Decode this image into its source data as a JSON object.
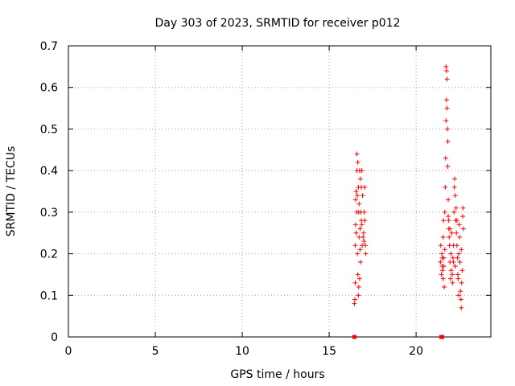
{
  "chart_data": {
    "type": "scatter",
    "title": "Day 303 of 2023, SRMTID for receiver p012",
    "xlabel": "GPS time / hours",
    "ylabel": "SRMTID / TECUs",
    "xlim": [
      0,
      24.3
    ],
    "ylim": [
      0,
      0.7
    ],
    "xticks": [
      0,
      5,
      10,
      15,
      20
    ],
    "yticks": [
      0,
      0.1,
      0.2,
      0.3,
      0.4,
      0.5,
      0.6,
      0.7
    ],
    "grid": true,
    "marker": "plus",
    "color": "#ff0000",
    "zero_points": [
      [
        16.45,
        0
      ],
      [
        21.45,
        0
      ],
      [
        21.5,
        0
      ]
    ],
    "series": [
      {
        "points": [
          [
            16.45,
            0.08
          ],
          [
            16.48,
            0.09
          ],
          [
            16.5,
            0.13
          ],
          [
            16.5,
            0.22
          ],
          [
            16.52,
            0.27
          ],
          [
            16.52,
            0.33
          ],
          [
            16.55,
            0.35
          ],
          [
            16.55,
            0.25
          ],
          [
            16.58,
            0.3
          ],
          [
            16.6,
            0.44
          ],
          [
            16.6,
            0.4
          ],
          [
            16.62,
            0.34
          ],
          [
            16.62,
            0.2
          ],
          [
            16.65,
            0.15
          ],
          [
            16.65,
            0.42
          ],
          [
            16.68,
            0.36
          ],
          [
            16.68,
            0.1
          ],
          [
            16.7,
            0.12
          ],
          [
            16.7,
            0.3
          ],
          [
            16.72,
            0.32
          ],
          [
            16.75,
            0.4
          ],
          [
            16.75,
            0.14
          ],
          [
            16.78,
            0.26
          ],
          [
            16.8,
            0.38
          ],
          [
            16.8,
            0.18
          ],
          [
            16.82,
            0.3
          ],
          [
            16.85,
            0.28
          ],
          [
            16.85,
            0.36
          ],
          [
            16.88,
            0.27
          ],
          [
            16.9,
            0.22
          ],
          [
            16.92,
            0.34
          ],
          [
            16.95,
            0.24
          ],
          [
            16.98,
            0.25
          ],
          [
            17.0,
            0.23
          ],
          [
            17.02,
            0.3
          ],
          [
            17.05,
            0.28
          ],
          [
            17.05,
            0.36
          ],
          [
            17.08,
            0.22
          ],
          [
            17.1,
            0.2
          ],
          [
            16.72,
            0.24
          ],
          [
            16.78,
            0.21
          ],
          [
            16.88,
            0.4
          ]
        ]
      },
      {
        "points": [
          [
            21.4,
            0.18
          ],
          [
            21.42,
            0.22
          ],
          [
            21.45,
            0.15
          ],
          [
            21.48,
            0.2
          ],
          [
            21.5,
            0.19
          ],
          [
            21.52,
            0.16
          ],
          [
            21.55,
            0.24
          ],
          [
            21.55,
            0.14
          ],
          [
            21.58,
            0.28
          ],
          [
            21.6,
            0.17
          ],
          [
            21.62,
            0.12
          ],
          [
            21.65,
            0.3
          ],
          [
            21.65,
            0.21
          ],
          [
            21.68,
            0.36
          ],
          [
            21.7,
            0.43
          ],
          [
            21.72,
            0.52
          ],
          [
            21.72,
            0.65
          ],
          [
            21.75,
            0.64
          ],
          [
            21.75,
            0.57
          ],
          [
            21.78,
            0.62
          ],
          [
            21.78,
            0.55
          ],
          [
            21.8,
            0.5
          ],
          [
            21.82,
            0.47
          ],
          [
            21.82,
            0.41
          ],
          [
            21.85,
            0.33
          ],
          [
            21.88,
            0.28
          ],
          [
            21.88,
            0.26
          ],
          [
            21.9,
            0.24
          ],
          [
            21.92,
            0.22
          ],
          [
            21.95,
            0.18
          ],
          [
            21.98,
            0.14
          ],
          [
            22.0,
            0.2
          ],
          [
            22.02,
            0.16
          ],
          [
            22.05,
            0.25
          ],
          [
            22.08,
            0.15
          ],
          [
            22.1,
            0.13
          ],
          [
            22.12,
            0.19
          ],
          [
            22.15,
            0.22
          ],
          [
            22.18,
            0.3
          ],
          [
            22.2,
            0.36
          ],
          [
            22.22,
            0.38
          ],
          [
            22.25,
            0.34
          ],
          [
            22.28,
            0.28
          ],
          [
            22.3,
            0.31
          ],
          [
            22.32,
            0.25
          ],
          [
            22.35,
            0.22
          ],
          [
            22.38,
            0.19
          ],
          [
            22.4,
            0.15
          ],
          [
            22.42,
            0.14
          ],
          [
            22.45,
            0.2
          ],
          [
            22.48,
            0.27
          ],
          [
            22.5,
            0.24
          ],
          [
            22.52,
            0.18
          ],
          [
            22.55,
            0.11
          ],
          [
            22.58,
            0.09
          ],
          [
            22.6,
            0.07
          ],
          [
            22.62,
            0.13
          ],
          [
            22.65,
            0.16
          ],
          [
            22.68,
            0.29
          ],
          [
            22.7,
            0.31
          ],
          [
            22.72,
            0.26
          ],
          [
            21.6,
            0.19
          ],
          [
            21.95,
            0.26
          ],
          [
            22.25,
            0.17
          ],
          [
            22.45,
            0.1
          ],
          [
            22.6,
            0.21
          ],
          [
            21.5,
            0.17
          ],
          [
            21.85,
            0.29
          ],
          [
            22.35,
            0.28
          ],
          [
            22.15,
            0.18
          ]
        ]
      }
    ]
  }
}
